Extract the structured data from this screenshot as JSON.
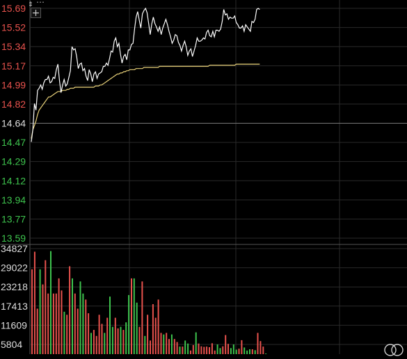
{
  "header": {
    "partial_text": "…"
  },
  "colors": {
    "background": "#000000",
    "grid": "#2a2a2a",
    "divider": "#555555",
    "axis_up": "#e8524d",
    "axis_down": "#3ec44e",
    "axis_ref": "#dddddd",
    "price_line": "#ffffff",
    "avg_line": "#e9d27a",
    "vol_up": "#e8524d",
    "vol_down": "#3ec44e"
  },
  "icons": {
    "expand": "expand-arrows-icon",
    "zoom": "plus-icon",
    "watermark": "watermark-icon"
  },
  "chart_data": [
    {
      "type": "line",
      "reference_price": 14.64,
      "ylim": [
        13.59,
        15.69
      ],
      "y_ticks": [
        "15.69",
        "15.52",
        "15.34",
        "15.17",
        "14.99",
        "14.82",
        "14.64",
        "14.47",
        "14.29",
        "14.12",
        "13.94",
        "13.77",
        "13.59"
      ],
      "series": [
        {
          "values": [
            14.47,
            14.58,
            14.82,
            14.76,
            14.94,
            14.96,
            14.99,
            14.95,
            15.01,
            15.04,
            15.04,
            15.07,
            15.01,
            15.02,
            15.06,
            15.05,
            15.13,
            15.18,
            15.03,
            14.92,
            14.99,
            15.04,
            14.98,
            15.0,
            15.06,
            15.12,
            15.34,
            15.31,
            15.32,
            15.25,
            15.14,
            15.18,
            15.19,
            15.12,
            15.14,
            15.07,
            15.03,
            15.13,
            15.09,
            15.02,
            15.09,
            15.11,
            15.05,
            15.09,
            15.1,
            15.11,
            15.16,
            15.16,
            15.19,
            15.17,
            15.23,
            15.3,
            15.29,
            15.39,
            15.42,
            15.34,
            15.37,
            15.27,
            15.19,
            15.25,
            15.27,
            15.22,
            15.31,
            15.31,
            15.36,
            15.37,
            15.5,
            15.61,
            15.66,
            15.58,
            15.51,
            15.64,
            15.67,
            15.69,
            15.65,
            15.55,
            15.45,
            15.55,
            15.61,
            15.55,
            15.52,
            15.48,
            15.52,
            15.45,
            15.51,
            15.55,
            15.59,
            15.54,
            15.48,
            15.43,
            15.37,
            15.4,
            15.45,
            15.44,
            15.38,
            15.35,
            15.3,
            15.35,
            15.39,
            15.34,
            15.26,
            15.3,
            15.32,
            15.25,
            15.3,
            15.35,
            15.42,
            15.39,
            15.39,
            15.4,
            15.42,
            15.41,
            15.47,
            15.49,
            15.44,
            15.43,
            15.48,
            15.43,
            15.49,
            15.49,
            15.48,
            15.5,
            15.57,
            15.68,
            15.63,
            15.64,
            15.59,
            15.61,
            15.6,
            15.6,
            15.62,
            15.56,
            15.54,
            15.51,
            15.51,
            15.53,
            15.48,
            15.54,
            15.52,
            15.5,
            15.48,
            15.57,
            15.56,
            15.59,
            15.68,
            15.69,
            15.68
          ]
        },
        {
          "values": [
            14.5,
            14.58,
            14.62,
            14.66,
            14.72,
            14.76,
            14.78,
            14.8,
            14.82,
            14.84,
            14.86,
            14.88,
            14.88,
            14.89,
            14.9,
            14.91,
            14.92,
            14.93,
            14.93,
            14.93,
            14.94,
            14.94,
            14.94,
            14.95,
            14.95,
            14.96,
            14.96,
            14.96,
            14.97,
            14.97,
            14.97,
            14.97,
            14.97,
            14.97,
            14.97,
            14.97,
            14.97,
            14.97,
            14.97,
            14.97,
            14.97,
            14.98,
            14.98,
            14.98,
            14.99,
            14.99,
            15.0,
            15.01,
            15.02,
            15.03,
            15.04,
            15.05,
            15.06,
            15.07,
            15.08,
            15.09,
            15.09,
            15.1,
            15.1,
            15.11,
            15.11,
            15.12,
            15.12,
            15.13,
            15.13,
            15.13,
            15.13,
            15.14,
            15.14,
            15.14,
            15.14,
            15.14,
            15.15,
            15.15,
            15.15,
            15.15,
            15.15,
            15.15,
            15.15,
            15.15,
            15.15,
            15.15,
            15.16,
            15.16,
            15.16,
            15.16,
            15.16,
            15.16,
            15.16,
            15.16,
            15.16,
            15.16,
            15.16,
            15.16,
            15.16,
            15.16,
            15.16,
            15.16,
            15.16,
            15.16,
            15.16,
            15.16,
            15.16,
            15.16,
            15.16,
            15.16,
            15.16,
            15.16,
            15.16,
            15.16,
            15.16,
            15.16,
            15.16,
            15.16,
            15.17,
            15.17,
            15.17,
            15.17,
            15.17,
            15.17,
            15.17,
            15.17,
            15.17,
            15.17,
            15.17,
            15.17,
            15.17,
            15.17,
            15.17,
            15.17,
            15.17,
            15.18,
            15.18,
            15.18,
            15.18,
            15.18,
            15.18,
            15.18,
            15.18,
            15.18,
            15.18,
            15.18,
            15.18,
            15.18,
            15.18,
            15.18,
            15.18
          ]
        }
      ]
    },
    {
      "type": "bar",
      "ylim": [
        0,
        34827
      ],
      "y_ticks": [
        "34827",
        "29022",
        "23218",
        "17413",
        "11609",
        "5804"
      ],
      "series": [
        {
          "values": [
            28000,
            33800,
            15000,
            28000,
            23000,
            31000,
            20000,
            34000,
            20000,
            20000,
            25000,
            21000,
            14000,
            13000,
            29000,
            25000,
            20000,
            15000,
            24000,
            20000,
            18000,
            13500,
            7000,
            8000,
            6000,
            13000,
            10000,
            7000,
            12000,
            19000,
            9000,
            12000,
            8500,
            9000,
            8000,
            10500,
            19500,
            25000,
            25000,
            17000,
            9000,
            24000,
            6000,
            13000,
            4500,
            16500,
            12000,
            18000,
            7000,
            6500,
            7000,
            5000,
            6500,
            5000,
            4000,
            2500,
            2500,
            4500,
            3500,
            1200,
            3000,
            7200,
            3500,
            2600,
            2400,
            2500,
            2300,
            3600,
            1200,
            3200,
            2000,
            2600,
            6300,
            3400,
            2000,
            3200,
            1500,
            1800,
            4600,
            2200,
            1200,
            1600,
            1600,
            1300,
            7000,
            4300,
            2500,
            200
          ]
        }
      ]
    }
  ]
}
